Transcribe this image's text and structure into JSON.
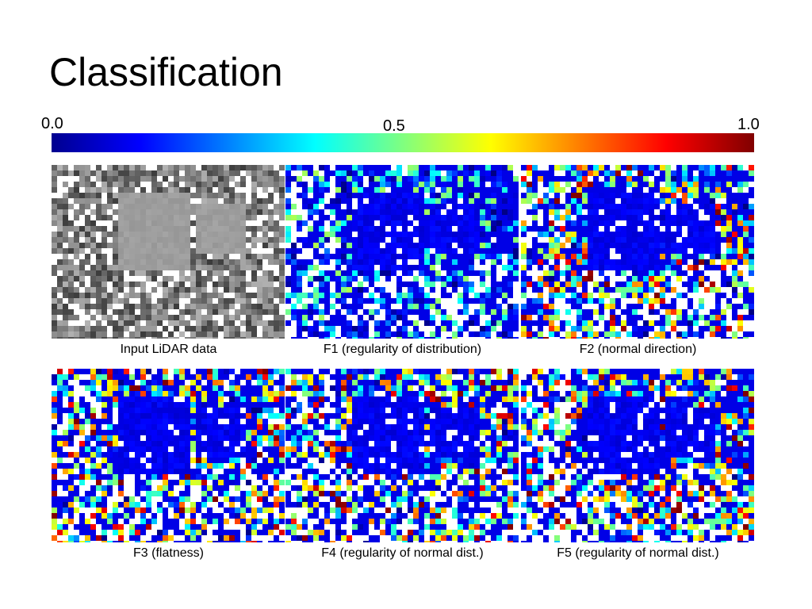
{
  "title": "Classification",
  "colorbar": {
    "labels": [
      "0.0",
      "0.5",
      "1.0"
    ]
  },
  "panels": [
    {
      "caption": "Input LiDAR data"
    },
    {
      "caption": "F1 (regularity of distribution)"
    },
    {
      "caption": "F2 (normal direction)"
    },
    {
      "caption": "F3 (flatness)"
    },
    {
      "caption": "F4 (regularity of normal dist.)"
    },
    {
      "caption": "F5 (regularity of normal dist.)"
    }
  ]
}
